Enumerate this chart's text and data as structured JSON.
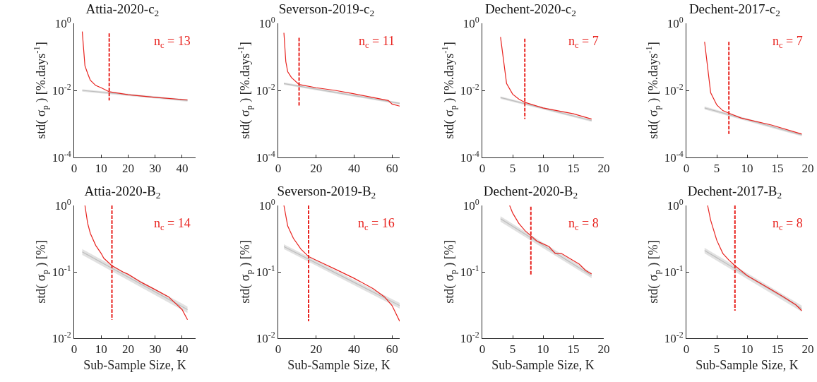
{
  "chart_data": [
    {
      "type": "line",
      "title": "Attia-2020-c$_{2}$",
      "ylabel": "std( σ$_{p}$ ) [%.days$^{-1}$]",
      "log": "y",
      "grid": false,
      "xlim": [
        0,
        45
      ],
      "xticks": [
        0,
        10,
        20,
        30,
        40
      ],
      "ylim": [
        0.0001,
        1
      ],
      "yticks": [
        {
          "value": 0.0001,
          "label": "10$^{-4}$"
        },
        {
          "value": 0.01,
          "label": "10$^{-2}$"
        },
        {
          "value": 1,
          "label": "10$^{0}$"
        }
      ],
      "annotations": [
        "n$_{c}$ = 13"
      ],
      "series": [
        {
          "color": "#bdbdbd",
          "x": [
            3,
            42
          ],
          "values": [
            0.01,
            0.005
          ],
          "lower": [
            0.0092,
            0.0046
          ],
          "upper": [
            0.0108,
            0.0054
          ]
        },
        {
          "color": "#e8231f",
          "x": [
            3,
            4,
            5,
            6,
            8,
            10,
            13,
            20,
            30,
            42
          ],
          "values": [
            0.57,
            0.054,
            0.032,
            0.02,
            0.014,
            0.012,
            0.0091,
            0.0074,
            0.0062,
            0.0052
          ]
        },
        {
          "color": "#e8231f",
          "line_style": "dashed",
          "x": [
            13,
            13
          ],
          "values": [
            0.5,
            0.005
          ]
        }
      ]
    },
    {
      "type": "line",
      "title": "Severson-2019-c$_{2}$",
      "ylabel": "std( σ$_{p}$ ) [%.days$^{-1}$]",
      "log": "y",
      "grid": false,
      "xlim": [
        0,
        64
      ],
      "xticks": [
        0,
        20,
        40,
        60
      ],
      "ylim": [
        0.0001,
        1
      ],
      "yticks": [
        {
          "value": 0.0001,
          "label": "10$^{-4}$"
        },
        {
          "value": 0.01,
          "label": "10$^{-2}$"
        },
        {
          "value": 1,
          "label": "10$^{0}$"
        }
      ],
      "annotations": [
        "n$_{c}$ = 11"
      ],
      "series": [
        {
          "color": "#bdbdbd",
          "x": [
            3,
            64
          ],
          "values": [
            0.016,
            0.0041
          ],
          "lower": [
            0.0147,
            0.0038
          ],
          "upper": [
            0.0173,
            0.0044
          ]
        },
        {
          "color": "#e8231f",
          "x": [
            3,
            4,
            5,
            7,
            11,
            20,
            30,
            40,
            50,
            58,
            60,
            64
          ],
          "values": [
            0.52,
            0.072,
            0.036,
            0.024,
            0.015,
            0.012,
            0.01,
            0.0079,
            0.0061,
            0.005,
            0.0039,
            0.0034
          ]
        },
        {
          "color": "#e8231f",
          "line_style": "dashed",
          "x": [
            11,
            11
          ],
          "values": [
            0.37,
            0.0034
          ]
        }
      ]
    },
    {
      "type": "line",
      "title": "Dechent-2020-c$_{2}$",
      "ylabel": "std( σ$_{p}$ ) [%.days$^{-1}$]",
      "log": "y",
      "grid": false,
      "xlim": [
        0,
        20
      ],
      "xticks": [
        0,
        5,
        10,
        15,
        20
      ],
      "ylim": [
        0.0001,
        1
      ],
      "yticks": [
        {
          "value": 0.0001,
          "label": "10$^{-4}$"
        },
        {
          "value": 0.01,
          "label": "10$^{-2}$"
        },
        {
          "value": 1,
          "label": "10$^{0}$"
        }
      ],
      "annotations": [
        "n$_{c}$ = 7"
      ],
      "series": [
        {
          "color": "#bdbdbd",
          "x": [
            3,
            18
          ],
          "values": [
            0.0061,
            0.00126
          ],
          "lower": [
            0.0056,
            0.00116
          ],
          "upper": [
            0.0066,
            0.00136
          ]
        },
        {
          "color": "#e8231f",
          "x": [
            3,
            4,
            5,
            6,
            7,
            10,
            15,
            18
          ],
          "values": [
            0.39,
            0.016,
            0.0077,
            0.0055,
            0.0044,
            0.003,
            0.002,
            0.0014
          ]
        },
        {
          "color": "#e8231f",
          "line_style": "dashed",
          "x": [
            7,
            7
          ],
          "values": [
            0.35,
            0.0014
          ]
        }
      ]
    },
    {
      "type": "line",
      "title": "Dechent-2017-c$_{2}$",
      "ylabel": "std( σ$_{p}$ ) [%.days$^{-1}$]",
      "log": "y",
      "grid": false,
      "xlim": [
        0,
        20
      ],
      "xticks": [
        0,
        5,
        10,
        15,
        20
      ],
      "ylim": [
        0.0001,
        1
      ],
      "yticks": [
        {
          "value": 0.0001,
          "label": "10$^{-4}$"
        },
        {
          "value": 0.01,
          "label": "10$^{-2}$"
        },
        {
          "value": 1,
          "label": "10$^{0}$"
        }
      ],
      "annotations": [
        "n$_{c}$ = 7"
      ],
      "series": [
        {
          "color": "#bdbdbd",
          "x": [
            3,
            19
          ],
          "values": [
            0.003,
            0.00047
          ],
          "lower": [
            0.0027,
            0.00043
          ],
          "upper": [
            0.0033,
            0.00051
          ]
        },
        {
          "color": "#e8231f",
          "x": [
            3,
            4,
            5,
            6,
            7,
            9,
            14,
            19
          ],
          "values": [
            0.28,
            0.0085,
            0.0037,
            0.0025,
            0.0021,
            0.0015,
            0.00093,
            0.0005
          ]
        },
        {
          "color": "#e8231f",
          "line_style": "dashed",
          "x": [
            7,
            7
          ],
          "values": [
            0.28,
            0.0005
          ]
        }
      ]
    },
    {
      "type": "line",
      "title": "Attia-2020-B$_{2}$",
      "xlabel": "Sub-Sample Size, K",
      "ylabel": "std( σ$_{p}$ ) [%]",
      "log": "y",
      "grid": false,
      "xlim": [
        0,
        45
      ],
      "xticks": [
        0,
        10,
        20,
        30,
        40
      ],
      "ylim": [
        0.01,
        1
      ],
      "yticks": [
        {
          "value": 0.01,
          "label": "10$^{-2}$"
        },
        {
          "value": 0.1,
          "label": "10$^{-1}$"
        },
        {
          "value": 1,
          "label": "10$^{0}$"
        }
      ],
      "annotations": [
        "n$_{c}$ = 14"
      ],
      "series": [
        {
          "color": "#bdbdbd",
          "x": [
            3,
            42
          ],
          "values": [
            0.2,
            0.027
          ],
          "lower": [
            0.18,
            0.024
          ],
          "upper": [
            0.22,
            0.03
          ]
        },
        {
          "color": "#e8231f",
          "x": [
            4,
            5,
            6,
            8,
            10,
            11,
            14,
            18,
            20,
            25,
            30,
            35,
            40,
            42
          ],
          "values": [
            1,
            0.54,
            0.38,
            0.25,
            0.19,
            0.16,
            0.124,
            0.1,
            0.092,
            0.069,
            0.054,
            0.042,
            0.027,
            0.019
          ]
        },
        {
          "color": "#e8231f",
          "line_style": "dashed",
          "x": [
            14,
            14
          ],
          "values": [
            1,
            0.019
          ]
        }
      ]
    },
    {
      "type": "line",
      "title": "Severson-2019-B$_{2}$",
      "xlabel": "Sub-Sample Size, K",
      "ylabel": "std( σ$_{p}$ ) [%]",
      "log": "y",
      "grid": false,
      "xlim": [
        0,
        64
      ],
      "xticks": [
        0,
        20,
        40,
        60
      ],
      "ylim": [
        0.01,
        1
      ],
      "yticks": [
        {
          "value": 0.01,
          "label": "10$^{-2}$"
        },
        {
          "value": 0.1,
          "label": "10$^{-1}$"
        },
        {
          "value": 1,
          "label": "10$^{0}$"
        }
      ],
      "annotations": [
        "n$_{c}$ = 16"
      ],
      "series": [
        {
          "color": "#bdbdbd",
          "x": [
            3,
            64
          ],
          "values": [
            0.24,
            0.031
          ],
          "lower": [
            0.22,
            0.028
          ],
          "upper": [
            0.26,
            0.034
          ]
        },
        {
          "color": "#e8231f",
          "x": [
            3,
            5,
            8,
            12,
            16,
            20,
            30,
            40,
            50,
            56,
            60,
            64
          ],
          "values": [
            1,
            0.49,
            0.32,
            0.22,
            0.17,
            0.15,
            0.11,
            0.08,
            0.056,
            0.042,
            0.031,
            0.018
          ]
        },
        {
          "color": "#e8231f",
          "line_style": "dashed",
          "x": [
            16,
            16
          ],
          "values": [
            1,
            0.018
          ]
        }
      ]
    },
    {
      "type": "line",
      "title": "Dechent-2020-B$_{2}$",
      "xlabel": "Sub-Sample Size, K",
      "ylabel": "std( σ$_{p}$ ) [%]",
      "log": "y",
      "grid": false,
      "xlim": [
        0,
        20
      ],
      "xticks": [
        0,
        5,
        10,
        15,
        20
      ],
      "ylim": [
        0.01,
        1
      ],
      "yticks": [
        {
          "value": 0.01,
          "label": "10$^{-2}$"
        },
        {
          "value": 0.1,
          "label": "10$^{-1}$"
        },
        {
          "value": 1,
          "label": "10$^{0}$"
        }
      ],
      "annotations": [
        "n$_{c}$ = 8"
      ],
      "series": [
        {
          "color": "#bdbdbd",
          "x": [
            3,
            18
          ],
          "values": [
            0.63,
            0.088
          ],
          "lower": [
            0.57,
            0.08
          ],
          "upper": [
            0.69,
            0.097
          ]
        },
        {
          "color": "#e8231f",
          "x": [
            4.5,
            5,
            6,
            7,
            8,
            9,
            11,
            12,
            13,
            16,
            17,
            18
          ],
          "values": [
            1,
            0.77,
            0.54,
            0.42,
            0.35,
            0.29,
            0.24,
            0.19,
            0.19,
            0.13,
            0.105,
            0.093
          ]
        },
        {
          "color": "#e8231f",
          "line_style": "dashed",
          "x": [
            8,
            8
          ],
          "values": [
            0.96,
            0.09
          ]
        }
      ]
    },
    {
      "type": "line",
      "title": "Dechent-2017-B$_{2}$",
      "xlabel": "Sub-Sample Size, K",
      "ylabel": "std( σ$_{p}$ ) [%]",
      "log": "y",
      "grid": false,
      "xlim": [
        0,
        20
      ],
      "xticks": [
        0,
        5,
        10,
        15,
        20
      ],
      "ylim": [
        0.01,
        1
      ],
      "yticks": [
        {
          "value": 0.01,
          "label": "10$^{-2}$"
        },
        {
          "value": 0.1,
          "label": "10$^{-1}$"
        },
        {
          "value": 1,
          "label": "10$^{0}$"
        }
      ],
      "annotations": [
        "n$_{c}$ = 8"
      ],
      "series": [
        {
          "color": "#bdbdbd",
          "x": [
            3,
            19
          ],
          "values": [
            0.21,
            0.028
          ],
          "lower": [
            0.19,
            0.025
          ],
          "upper": [
            0.23,
            0.031
          ]
        },
        {
          "color": "#e8231f",
          "x": [
            3.5,
            4,
            5,
            6,
            7,
            8,
            10,
            12,
            14,
            16,
            18,
            19
          ],
          "values": [
            1,
            0.6,
            0.3,
            0.19,
            0.15,
            0.124,
            0.088,
            0.069,
            0.054,
            0.042,
            0.032,
            0.026
          ]
        },
        {
          "color": "#e8231f",
          "line_style": "dashed",
          "x": [
            8,
            8
          ],
          "values": [
            1,
            0.026
          ]
        }
      ]
    }
  ]
}
